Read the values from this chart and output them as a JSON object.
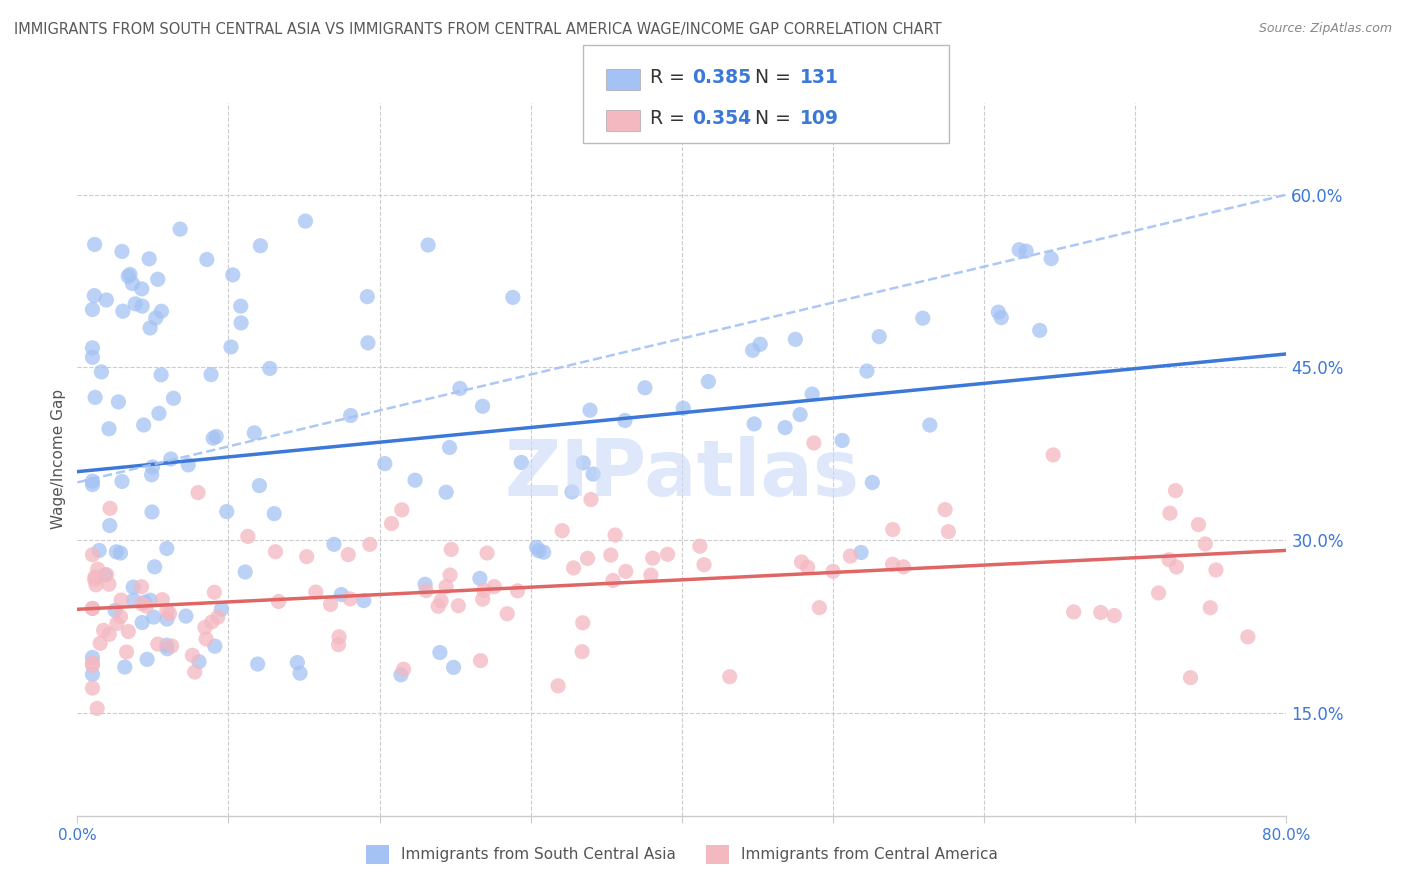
{
  "title": "IMMIGRANTS FROM SOUTH CENTRAL ASIA VS IMMIGRANTS FROM CENTRAL AMERICA WAGE/INCOME GAP CORRELATION CHART",
  "source": "Source: ZipAtlas.com",
  "ylabel": "Wage/Income Gap",
  "xlim": [
    0.0,
    0.8
  ],
  "ylim": [
    0.06,
    0.68
  ],
  "ytick_positions": [
    0.15,
    0.3,
    0.45,
    0.6
  ],
  "ytick_labels": [
    "15.0%",
    "30.0%",
    "45.0%",
    "60.0%"
  ],
  "blue_R": 0.385,
  "blue_N": 131,
  "pink_R": 0.354,
  "pink_N": 109,
  "legend_label_blue": "Immigrants from South Central Asia",
  "legend_label_pink": "Immigrants from Central America",
  "blue_color": "#a4c2f4",
  "pink_color": "#f4b8c1",
  "blue_line_color": "#3c78d8",
  "pink_line_color": "#e06666",
  "dashed_line_color": "#a4c2f4",
  "text_color_blue": "#3c78d8",
  "watermark_color": "#c9daf8",
  "grid_color": "#cccccc",
  "title_color": "#595959"
}
